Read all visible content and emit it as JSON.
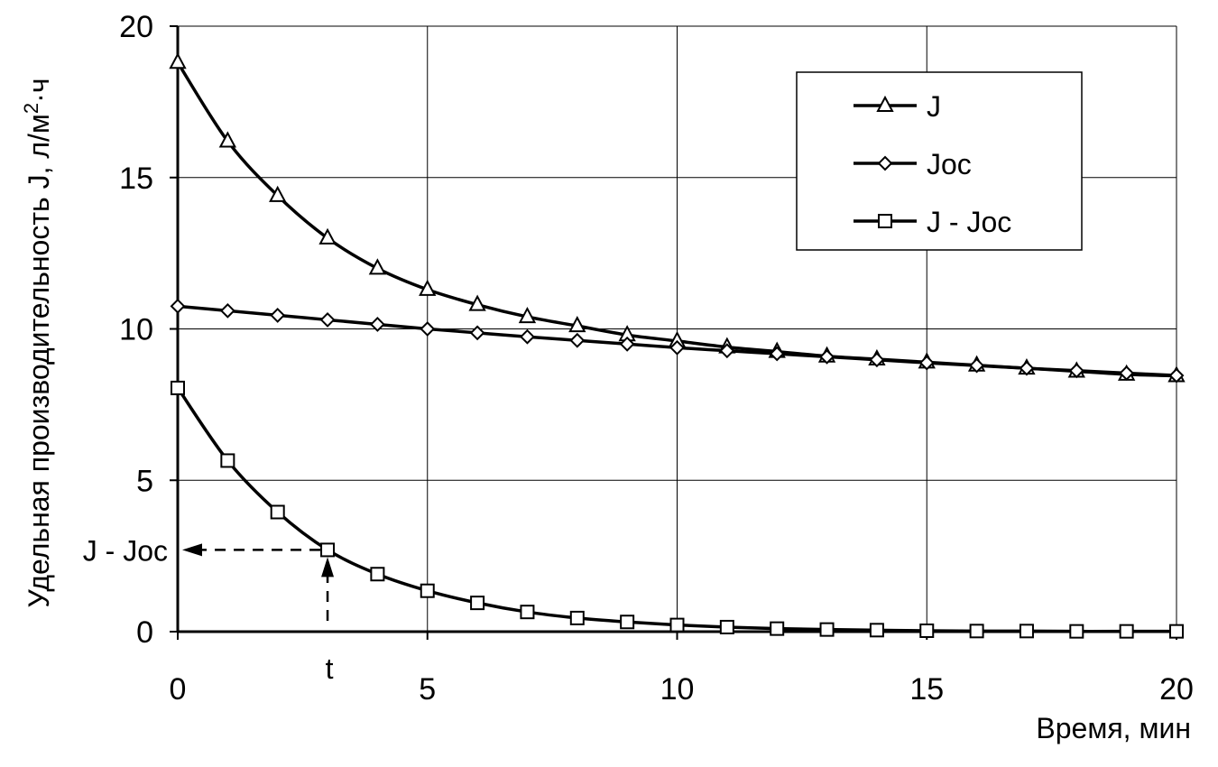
{
  "chart_data": {
    "type": "line",
    "title": "",
    "xlabel": "Время, мин",
    "ylabel_text": "Удельная производительность J, л/м",
    "ylabel_sup": "2",
    "ylabel_end": "·ч",
    "xlim": [
      0,
      20
    ],
    "ylim": [
      0,
      20
    ],
    "x_ticks": [
      0,
      5,
      10,
      15,
      20
    ],
    "y_ticks": [
      0,
      5,
      10,
      15,
      20
    ],
    "grid": true,
    "legend_position": "top-right",
    "x": [
      0,
      1,
      2,
      3,
      4,
      5,
      6,
      7,
      8,
      9,
      10,
      11,
      12,
      13,
      14,
      15,
      16,
      17,
      18,
      19,
      20
    ],
    "series": [
      {
        "name": "J",
        "marker": "triangle",
        "values": [
          18.8,
          16.2,
          14.4,
          13.0,
          12.0,
          11.3,
          10.8,
          10.4,
          10.1,
          9.8,
          9.6,
          9.4,
          9.25,
          9.1,
          9.0,
          8.9,
          8.8,
          8.7,
          8.6,
          8.5,
          8.45
        ]
      },
      {
        "name": "Joc",
        "marker": "diamond",
        "values": [
          10.75,
          10.6,
          10.45,
          10.3,
          10.15,
          10.0,
          9.87,
          9.74,
          9.62,
          9.5,
          9.38,
          9.28,
          9.18,
          9.08,
          8.98,
          8.88,
          8.79,
          8.7,
          8.62,
          8.54,
          8.46
        ]
      },
      {
        "name": "J - Joc",
        "marker": "square",
        "values": [
          8.05,
          5.65,
          3.95,
          2.7,
          1.9,
          1.35,
          0.95,
          0.65,
          0.45,
          0.32,
          0.22,
          0.15,
          0.1,
          0.07,
          0.05,
          0.03,
          0.02,
          0.02,
          0.01,
          0.01,
          0.01
        ]
      }
    ],
    "annotations": {
      "point_x": 3,
      "point_y": 2.7,
      "x_label": "t",
      "y_label": "J - Joc"
    }
  }
}
